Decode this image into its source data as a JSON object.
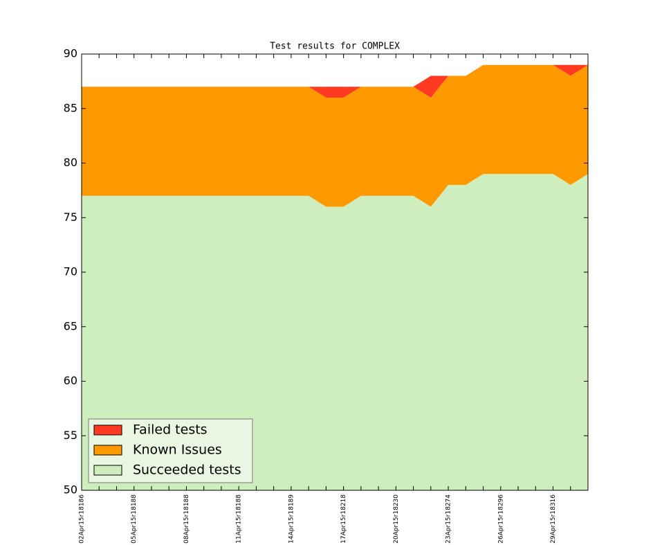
{
  "chart_data": {
    "type": "stacked_area",
    "title": "Test results for COMPLEX",
    "categories": [
      "02Apr15r18186",
      null,
      null,
      "05Apr15r18188",
      null,
      null,
      "08Apr15r18188",
      null,
      null,
      "11Apr15r18188",
      null,
      null,
      "14Apr15r18189",
      null,
      null,
      "17Apr15r18218",
      null,
      null,
      "20Apr15r18230",
      null,
      null,
      "23Apr15r18274",
      null,
      null,
      "26Apr15r18296",
      null,
      null,
      "29Apr15r18316",
      null,
      null
    ],
    "series": [
      {
        "name": "Failed tests",
        "color": "#ff3a22",
        "values": [
          0,
          0,
          0,
          0,
          0,
          0,
          0,
          0,
          0,
          0,
          0,
          0,
          0,
          0,
          1,
          1,
          0,
          0,
          0,
          0,
          2,
          0,
          0,
          0,
          0,
          0,
          0,
          0,
          1,
          0
        ]
      },
      {
        "name": "Known Issues",
        "color": "#ff9900",
        "values": [
          10,
          10,
          10,
          10,
          10,
          10,
          10,
          10,
          10,
          10,
          10,
          10,
          10,
          10,
          10,
          10,
          10,
          10,
          10,
          10,
          10,
          10,
          10,
          10,
          10,
          10,
          10,
          10,
          10,
          10
        ]
      },
      {
        "name": "Succeeded tests",
        "color": "#ceeebe",
        "values": [
          77,
          77,
          77,
          77,
          77,
          77,
          77,
          77,
          77,
          77,
          77,
          77,
          77,
          77,
          76,
          76,
          77,
          77,
          77,
          77,
          76,
          78,
          78,
          79,
          79,
          79,
          79,
          79,
          78,
          79
        ]
      }
    ],
    "ylim": [
      50,
      90
    ],
    "yticks": [
      50,
      55,
      60,
      65,
      70,
      75,
      80,
      85,
      90
    ],
    "legend": "lower left"
  }
}
